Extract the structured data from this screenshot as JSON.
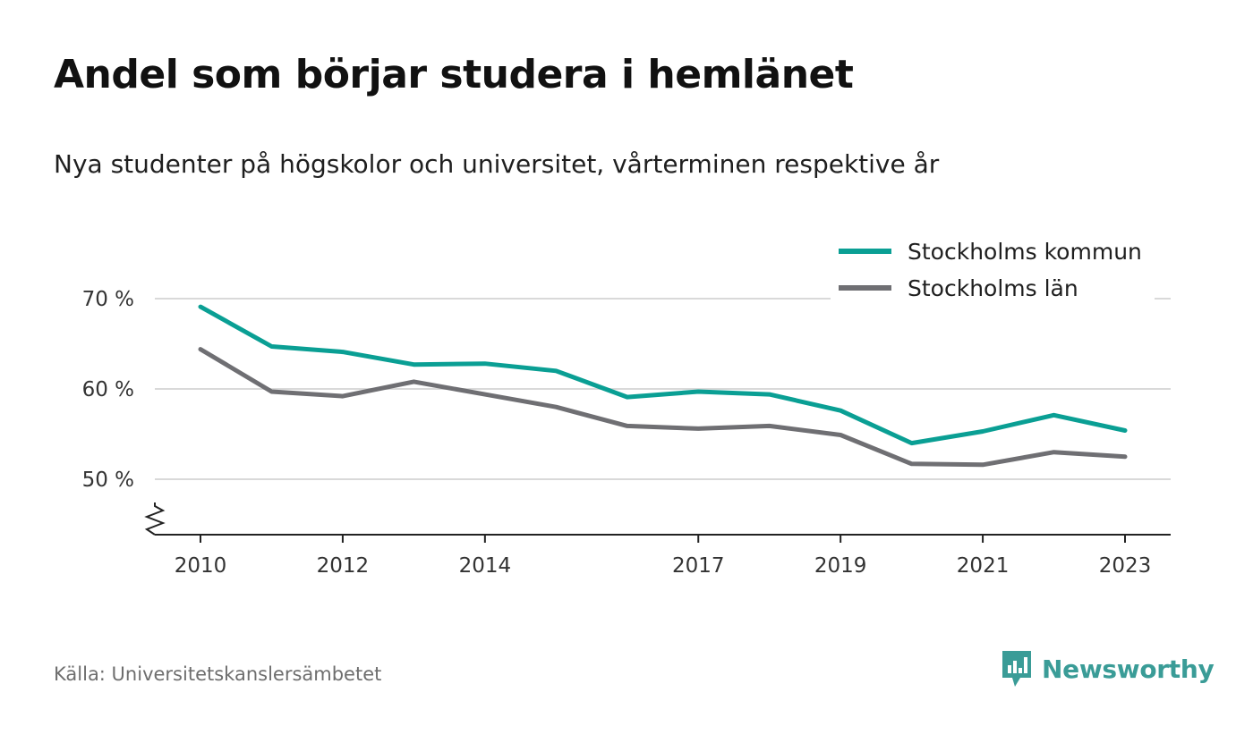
{
  "title": "Andel som börjar studera i hemlänet",
  "subtitle": "Nya studenter på högskolor och universitet, vårterminen respektive år",
  "source": "Källa: Universitetskanslersämbetet",
  "brand": {
    "name": "Newsworthy",
    "color": "#3a9c97",
    "icon": "newsworthy-logo-icon"
  },
  "chart_data": {
    "type": "line",
    "title": "Andel som börjar studera i hemlänet",
    "subtitle": "Nya studenter på högskolor och universitet, vårterminen respektive år",
    "xlabel": "",
    "ylabel": "",
    "x": [
      2010,
      2011,
      2012,
      2013,
      2014,
      2015,
      2016,
      2017,
      2018,
      2019,
      2020,
      2021,
      2022,
      2023
    ],
    "x_ticks": [
      2010,
      2012,
      2014,
      2017,
      2019,
      2021,
      2023
    ],
    "y_ticks": [
      50,
      60,
      70
    ],
    "y_tick_labels": [
      "50 %",
      "60 %",
      "70 %"
    ],
    "ylim": [
      44,
      72
    ],
    "y_axis_break": true,
    "grid": "horizontal",
    "legend_position": "top-right",
    "series": [
      {
        "name": "Stockholms kommun",
        "color": "#0a9f94",
        "values": [
          69.1,
          64.7,
          64.1,
          62.7,
          62.8,
          62.0,
          59.1,
          59.7,
          59.4,
          57.6,
          54.0,
          55.3,
          57.1,
          55.4
        ]
      },
      {
        "name": "Stockholms län",
        "color": "#6f6f73",
        "values": [
          64.4,
          59.7,
          59.2,
          60.8,
          59.4,
          58.0,
          55.9,
          55.6,
          55.9,
          54.9,
          51.7,
          51.6,
          53.0,
          52.5
        ]
      }
    ]
  }
}
